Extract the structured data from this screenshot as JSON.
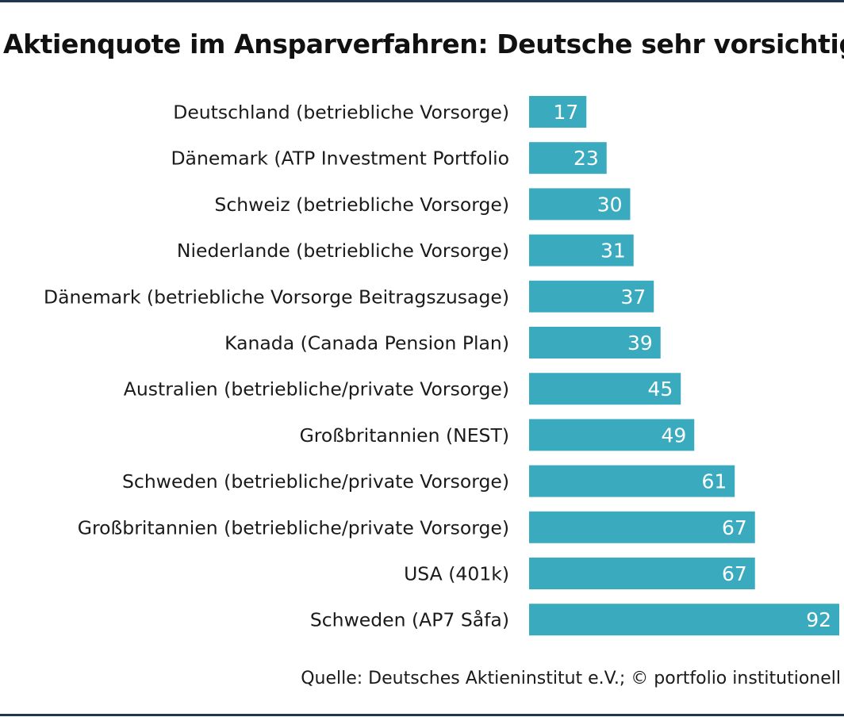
{
  "colors": {
    "bar": "#3aabbf",
    "rule": "#1f3550",
    "value_text": "#ffffff"
  },
  "chart_data": {
    "type": "bar",
    "orientation": "horizontal",
    "title": "Aktienquote im Ansparverfahren: Deutsche sehr vorsichtig",
    "source": "Quelle: Deutsches Aktieninstitut e.V.; © portfolio institutionell",
    "categories": [
      "Deutschland (betriebliche Vorsorge)",
      "Dänemark (ATP Investment Portfolio",
      "Schweiz (betriebliche Vorsorge)",
      "Niederlande (betriebliche Vorsorge)",
      "Dänemark (betriebliche Vorsorge Beitragszusage)",
      "Kanada (Canada Pension Plan)",
      "Australien (betriebliche/private Vorsorge)",
      "Großbritannien (NEST)",
      "Schweden (betriebliche/private Vorsorge)",
      "Großbritannien (betriebliche/private Vorsorge)",
      "USA (401k)",
      "Schweden (AP7 Såfa)"
    ],
    "values": [
      17,
      23,
      30,
      31,
      37,
      39,
      45,
      49,
      61,
      67,
      67,
      92
    ],
    "data_labels": true,
    "grid": false,
    "legend": "none",
    "xlim": [
      0,
      92
    ]
  }
}
